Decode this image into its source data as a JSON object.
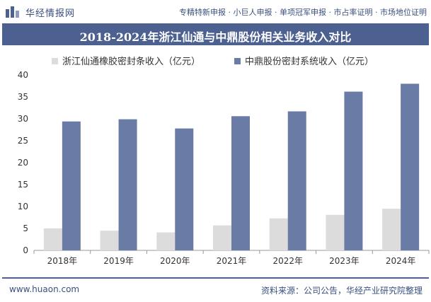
{
  "header": {
    "brand": "华经情报网",
    "services": "专精特新申报 · 小巨人申报 · 单项冠军申报 · 市占率证明 · 市场地位证明"
  },
  "footer": {
    "website": "www.huaon.com",
    "source": "资料来源：公司公告，华经产业研究院整理"
  },
  "colors": {
    "brand": "#4d6190",
    "series1": "#dcdcdc",
    "series2": "#6a7ba6"
  },
  "chart_data": {
    "type": "bar",
    "title": "2018-2024年浙江仙通与中鼎股份相关业务收入对比",
    "categories": [
      "2018年",
      "2019年",
      "2020年",
      "2021年",
      "2022年",
      "2023年",
      "2024年"
    ],
    "series": [
      {
        "name": "浙江仙通橡胶密封条收入（亿元）",
        "values": [
          5.0,
          4.5,
          4.1,
          5.7,
          7.3,
          8.1,
          9.5
        ]
      },
      {
        "name": "中鼎股份密封系统收入（亿元）",
        "values": [
          29.4,
          29.9,
          27.8,
          30.6,
          31.7,
          36.2,
          38.0
        ]
      }
    ],
    "ylim": [
      0,
      40
    ],
    "yticks": [
      0,
      5,
      10,
      15,
      20,
      25,
      30,
      35,
      40
    ],
    "legend_position": "top",
    "grid": false
  }
}
